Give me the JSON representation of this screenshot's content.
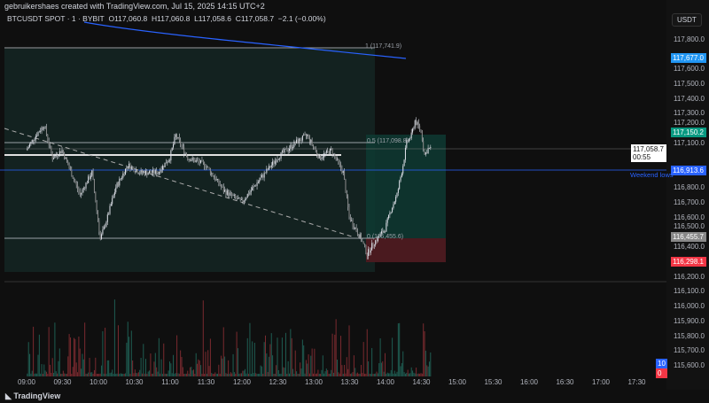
{
  "credit": "gebruikershaes created with TradingView.com, Jul 15, 2025 14:15 UTC+2",
  "legend": {
    "symbol": "BTCUSDT SPOT · 1 · BYBIT",
    "open": "O117,060.8",
    "high": "H117,060.8",
    "low": "L117,058.6",
    "close": "C117,058.7",
    "change": "−2.1 (−0.00%)"
  },
  "currency": "USDT",
  "price_ticks": [
    "117,800.0",
    "117,600.0",
    "117,500.0",
    "117,400.0",
    "117,300.0",
    "117,200.0",
    "117,100.0",
    "116,800.0",
    "116,700.0",
    "116,600.0",
    "116,500.0",
    "116,400.0",
    "116,200.0",
    "116,100.0",
    "116,000.0",
    "115,900.0",
    "115,800.0",
    "115,700.0",
    "115,600.0"
  ],
  "price_tick_values": [
    117800,
    117600,
    117500,
    117400,
    117300,
    117200,
    117100,
    116800,
    116700,
    116600,
    116500,
    116400,
    116200,
    116100,
    116000,
    115900,
    115800,
    115700,
    115600
  ],
  "tags": {
    "ma": "117,677.0",
    "target": "117,150.2",
    "last": "117,058.7",
    "countdown": "00:55",
    "weekend": "116,913.6",
    "fib0": "116,455.7",
    "stop": "116,298.1",
    "vol_blue": "10",
    "vol_red": "0"
  },
  "fib": {
    "level1": "1 (117,741.9)",
    "level05": "0.5 (117,098.8)",
    "level0": "0 (116,455.6)"
  },
  "weekend_label": "Weekend lows",
  "time_ticks": [
    "09:00",
    "09:30",
    "10:00",
    "10:30",
    "11:00",
    "11:30",
    "12:00",
    "12:30",
    "13:00",
    "13:30",
    "14:00",
    "14:30",
    "15:00",
    "15:30",
    "16:00",
    "16:30",
    "17:00",
    "17:30"
  ],
  "colors": {
    "up": "#d1d4dc",
    "ma": "#2962ff",
    "green_tag": "#089981",
    "red_tag": "#f23645",
    "blue_tag": "#2196f3"
  },
  "price_path": [
    [
      0,
      117050
    ],
    [
      8,
      117150
    ],
    [
      15,
      117220
    ],
    [
      22,
      117000
    ],
    [
      30,
      117050
    ],
    [
      40,
      116850
    ],
    [
      45,
      116750
    ],
    [
      55,
      116900
    ],
    [
      62,
      116450
    ],
    [
      68,
      116600
    ],
    [
      75,
      116800
    ],
    [
      85,
      116950
    ],
    [
      95,
      116900
    ],
    [
      110,
      116900
    ],
    [
      120,
      117000
    ],
    [
      125,
      117150
    ],
    [
      135,
      117000
    ],
    [
      150,
      116950
    ],
    [
      165,
      116780
    ],
    [
      180,
      116700
    ],
    [
      195,
      116850
    ],
    [
      210,
      117000
    ],
    [
      225,
      117100
    ],
    [
      235,
      117150
    ],
    [
      245,
      117000
    ],
    [
      255,
      117050
    ],
    [
      265,
      116900
    ],
    [
      270,
      116600
    ],
    [
      280,
      116450
    ],
    [
      285,
      116350
    ],
    [
      290,
      116420
    ],
    [
      300,
      116520
    ],
    [
      305,
      116650
    ],
    [
      310,
      116750
    ],
    [
      315,
      116950
    ],
    [
      318,
      117100
    ],
    [
      322,
      117150
    ],
    [
      325,
      117250
    ],
    [
      330,
      117180
    ],
    [
      333,
      117020
    ],
    [
      336,
      117060
    ],
    [
      338,
      117058
    ]
  ]
}
